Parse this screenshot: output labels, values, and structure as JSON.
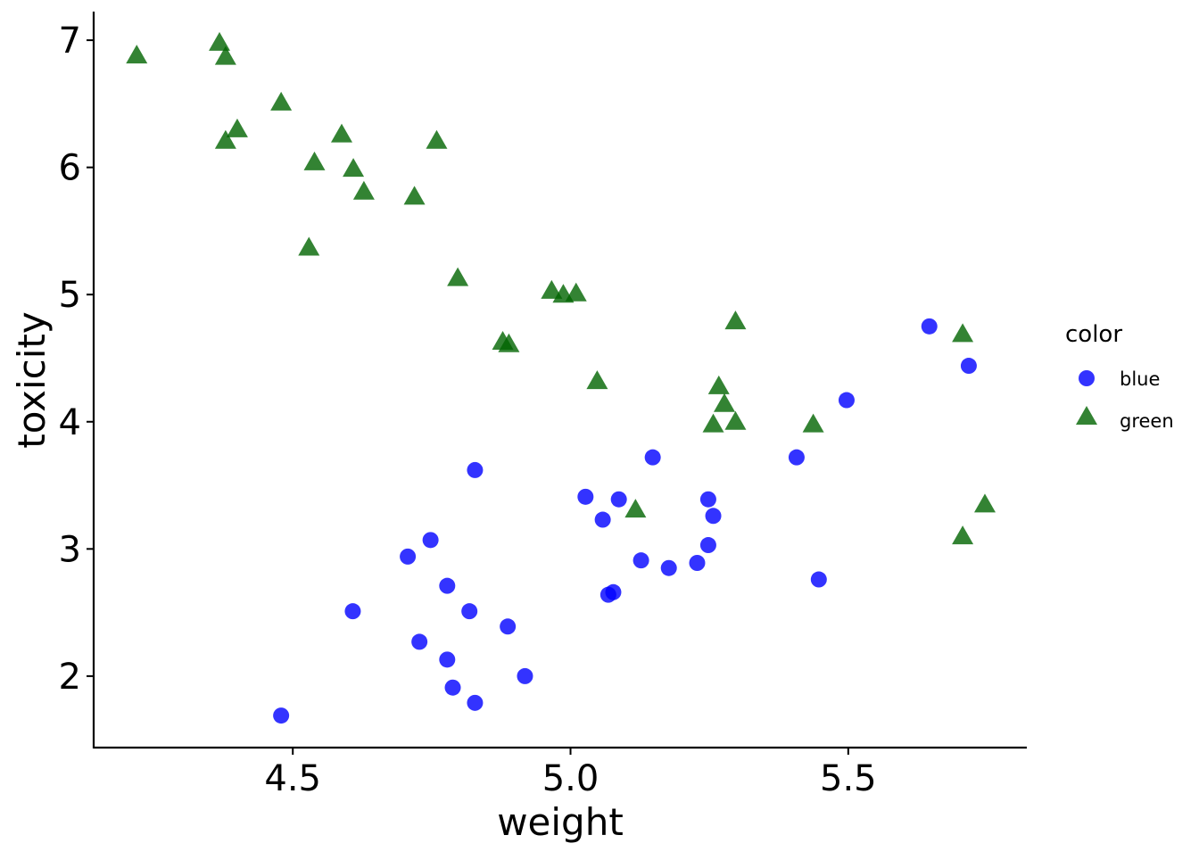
{
  "chart_data": {
    "type": "scatter",
    "title": "",
    "xlabel": "weight",
    "ylabel": "toxicity",
    "xlim": [
      4.1415,
      5.8215
    ],
    "ylim": [
      1.438,
      7.225
    ],
    "xticks": [
      4.5,
      5.0,
      5.5
    ],
    "xtick_labels": [
      "4.5",
      "5.0",
      "5.5"
    ],
    "yticks": [
      2,
      3,
      4,
      5,
      6,
      7
    ],
    "ytick_labels": [
      "2",
      "3",
      "4",
      "5",
      "6",
      "7"
    ],
    "grid": false,
    "legend": {
      "title": "color",
      "placement": "right",
      "entries": [
        "blue",
        "green"
      ]
    },
    "series": [
      {
        "name": "blue",
        "color": "#0000FF",
        "shape": "circle",
        "points": [
          [
            5.646,
            4.75
          ],
          [
            5.717,
            4.44
          ],
          [
            5.497,
            4.17
          ],
          [
            5.407,
            3.72
          ],
          [
            5.148,
            3.72
          ],
          [
            4.828,
            3.62
          ],
          [
            5.027,
            3.41
          ],
          [
            5.087,
            3.39
          ],
          [
            5.248,
            3.39
          ],
          [
            5.058,
            3.23
          ],
          [
            5.257,
            3.26
          ],
          [
            5.248,
            3.03
          ],
          [
            4.748,
            3.07
          ],
          [
            4.707,
            2.94
          ],
          [
            5.127,
            2.91
          ],
          [
            5.177,
            2.85
          ],
          [
            5.228,
            2.89
          ],
          [
            4.778,
            2.71
          ],
          [
            5.077,
            2.66
          ],
          [
            5.068,
            2.64
          ],
          [
            5.447,
            2.76
          ],
          [
            4.608,
            2.51
          ],
          [
            4.818,
            2.51
          ],
          [
            4.887,
            2.39
          ],
          [
            4.728,
            2.27
          ],
          [
            4.778,
            2.13
          ],
          [
            4.918,
            2.0
          ],
          [
            4.788,
            1.91
          ],
          [
            4.828,
            1.79
          ],
          [
            4.479,
            1.69
          ]
        ]
      },
      {
        "name": "green",
        "color": "#006400",
        "shape": "triangle",
        "points": [
          [
            4.219,
            6.88
          ],
          [
            4.368,
            6.98
          ],
          [
            4.379,
            6.87
          ],
          [
            4.479,
            6.51
          ],
          [
            4.4,
            6.3
          ],
          [
            4.379,
            6.21
          ],
          [
            4.588,
            6.26
          ],
          [
            4.539,
            6.04
          ],
          [
            4.609,
            5.99
          ],
          [
            4.628,
            5.81
          ],
          [
            4.719,
            5.77
          ],
          [
            4.759,
            6.21
          ],
          [
            4.529,
            5.37
          ],
          [
            4.797,
            5.13
          ],
          [
            4.966,
            5.03
          ],
          [
            4.987,
            5.0
          ],
          [
            5.01,
            5.01
          ],
          [
            4.878,
            4.63
          ],
          [
            4.889,
            4.61
          ],
          [
            5.048,
            4.32
          ],
          [
            5.297,
            4.79
          ],
          [
            5.267,
            4.28
          ],
          [
            5.277,
            4.14
          ],
          [
            5.257,
            3.98
          ],
          [
            5.297,
            4.0
          ],
          [
            5.437,
            3.98
          ],
          [
            5.117,
            3.31
          ],
          [
            5.706,
            4.69
          ],
          [
            5.746,
            3.35
          ],
          [
            5.706,
            3.1
          ]
        ]
      }
    ]
  }
}
